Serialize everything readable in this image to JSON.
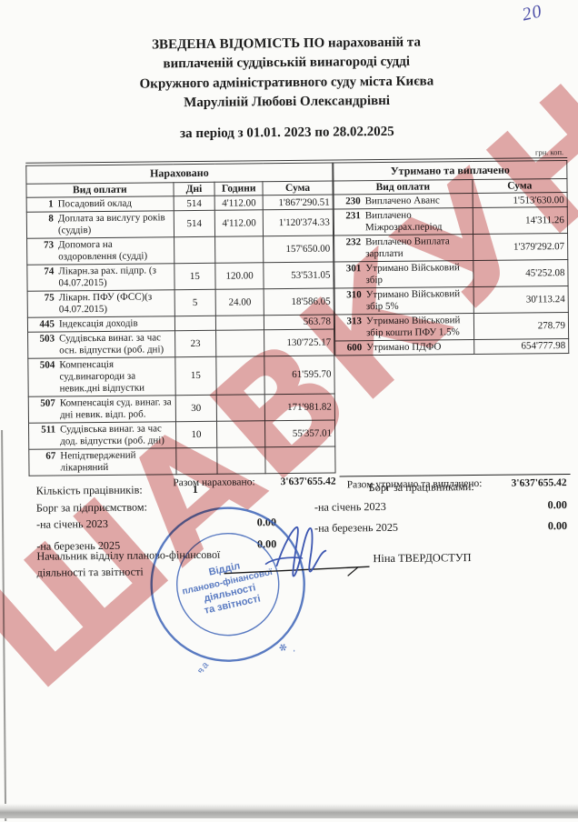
{
  "page": {
    "handwritten_page_number": "20",
    "currency_note": "грн. коп."
  },
  "title": {
    "line1": "ЗВЕДЕНА ВІДОМІСТЬ ПО нарахованій та",
    "line2": "виплаченій суддівській винагороді судді",
    "line3": "Окружного адміністративного суду міста Києва",
    "line4": "Маруліній Любові Олександрівні"
  },
  "period": "за період з 01.01. 2023 по 28.02.2025",
  "accrued_table": {
    "section_title": "Нараховано",
    "columns": {
      "type": "Вид оплати",
      "days": "Дні",
      "hours": "Години",
      "sum": "Сума"
    },
    "rows": [
      {
        "code": "1",
        "label": "Посадовий оклад",
        "days": "514",
        "hours": "4'112.00",
        "sum": "1'867'290.51"
      },
      {
        "code": "8",
        "label": "Доплата за вислугу років (суддів)",
        "days": "514",
        "hours": "4'112.00",
        "sum": "1'120'374.33"
      },
      {
        "code": "73",
        "label": "Допомога на оздоровлення (судді)",
        "days": "",
        "hours": "",
        "sum": "157'650.00"
      },
      {
        "code": "74",
        "label": "Лікарн.за рах. підпр. (з 04.07.2015)",
        "days": "15",
        "hours": "120.00",
        "sum": "53'531.05"
      },
      {
        "code": "75",
        "label": "Лікарн. ПФУ (ФСС)(з 04.07.2015)",
        "days": "5",
        "hours": "24.00",
        "sum": "18'586.05"
      },
      {
        "code": "445",
        "label": "Індексація доходів",
        "days": "",
        "hours": "",
        "sum": "563.78"
      },
      {
        "code": "503",
        "label": "Суддівська винаг. за час осн. відпустки (роб. дні)",
        "days": "23",
        "hours": "",
        "sum": "130'725.17"
      },
      {
        "code": "504",
        "label": "Компенсація суд.винагороди за невик.дні відпустки",
        "days": "15",
        "hours": "",
        "sum": "61'595.70"
      },
      {
        "code": "507",
        "label": "Компенсація суд. винаг. за дні невик. відп. роб.",
        "days": "30",
        "hours": "",
        "sum": "171'981.82"
      },
      {
        "code": "511",
        "label": "Суддівська винаг. за час дод. відпустки (роб. дні)",
        "days": "10",
        "hours": "",
        "sum": "55'357.01"
      },
      {
        "code": "67",
        "label": "Непідтверджений лікарняний",
        "days": "",
        "hours": "",
        "sum": ""
      }
    ],
    "total_label": "Разом нараховано:",
    "total_value": "3'637'655.42"
  },
  "withheld_table": {
    "section_title": "Утримано та виплачено",
    "columns": {
      "type": "Вид оплати",
      "sum": "Сума"
    },
    "rows": [
      {
        "code": "230",
        "label": "Виплачено Аванс",
        "sum": "1'513'630.00"
      },
      {
        "code": "231",
        "label": "Виплачено Міжрозрах.період",
        "sum": "14'311.26"
      },
      {
        "code": "232",
        "label": "Виплачено Виплата зарплати",
        "sum": "1'379'292.07"
      },
      {
        "code": "301",
        "label": "Утримано Військовий збір",
        "sum": "45'252.08"
      },
      {
        "code": "310",
        "label": "Утримано Військовий збір 5%",
        "sum": "30'113.24"
      },
      {
        "code": "313",
        "label": "Утримано Військовий збір кошти ПФУ 1.5%",
        "sum": "278.79"
      },
      {
        "code": "600",
        "label": "Утримано ПДФО",
        "sum": "654'777.98"
      }
    ],
    "total_label": "Разом утримано та виплачено:",
    "total_value": "3'637'655.42"
  },
  "summary": {
    "employees_label": "Кількість працівників:",
    "employees_value": "1",
    "enterprise_debt_label": "Борг за підприємством:",
    "employee_debt_label": "Борг за працівниками:",
    "enterprise_debt_rows": [
      {
        "label": "-на січень 2023",
        "value": "0.00"
      },
      {
        "label": "-на березень 2025",
        "value": "0.00"
      }
    ],
    "employee_debt_rows": [
      {
        "label": "-на січень 2023",
        "value": "0.00"
      },
      {
        "label": "-на березень 2025",
        "value": "0.00"
      }
    ]
  },
  "signature": {
    "position_title": "Начальник відділу планово-фінансової діяльності та звітності",
    "name": "Ніна ТВЕРДОСТУП"
  },
  "stamp": {
    "outer_ring_text": "✻ Україна ✻ Окружний адміністративний суд міста Києва",
    "inner_ring_text": "ідентифікаційний код 34414689",
    "center_lines": [
      "Відділ",
      "планово-фінансової",
      "діяльності",
      "та звітності"
    ],
    "color": "#3c63b8"
  },
  "watermark": {
    "text": "ШАВКУН",
    "color": "#c65a5a"
  }
}
